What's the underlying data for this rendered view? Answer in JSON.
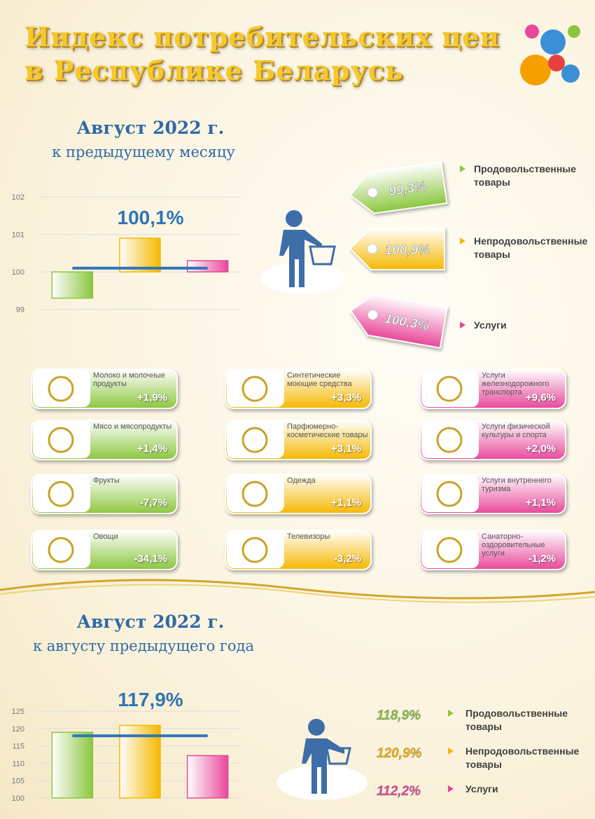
{
  "header": {
    "title_lines": [
      "Индекс потребительских цен",
      "в Республике Беларусь"
    ]
  },
  "chart_data": [
    {
      "type": "bar",
      "title": "Август 2022 г.",
      "subtitle": "к предыдущему месяцу",
      "categories": [
        "Продовольственные товары",
        "Непродовольственные товары",
        "Услуги"
      ],
      "values": [
        99.3,
        100.9,
        100.3
      ],
      "value_labels": [
        "99,3%",
        "100,9%",
        "100,3%"
      ],
      "colors": [
        "#8cc63f",
        "#f5b800",
        "#e8489a"
      ],
      "bar_base": 100,
      "total": 100.1,
      "total_label": "100,1%",
      "total_color": "#2e75b6",
      "ylim": [
        98.75,
        102.3
      ],
      "yticks": [
        99,
        100,
        101,
        102
      ],
      "grid": true
    },
    {
      "type": "bar",
      "title": "Август 2022 г.",
      "subtitle": "к августу предыдущего года",
      "categories": [
        "Продовольственные товары",
        "Непродовольственные товары",
        "Услуги"
      ],
      "values": [
        118.9,
        120.9,
        112.2
      ],
      "value_labels": [
        "118,9%",
        "120,9%",
        "112,2%"
      ],
      "colors": [
        "#8cc63f",
        "#f5b800",
        "#e8489a"
      ],
      "bar_base": 100,
      "total": 117.9,
      "total_label": "117,9%",
      "total_color": "#2e75b6",
      "ylim": [
        100,
        125
      ],
      "yticks": [
        100,
        105,
        110,
        115,
        120,
        125
      ],
      "grid": true
    }
  ],
  "cards": [
    {
      "color": "#8cc63f",
      "items": [
        {
          "label": "Молоко и молочные продукты",
          "value": "+1,9%"
        },
        {
          "label": "Мясо и мясопродукты",
          "value": "+1,4%"
        },
        {
          "label": "Фрукты",
          "value": "-7,7%"
        },
        {
          "label": "Овощи",
          "value": "-34,1%"
        }
      ]
    },
    {
      "color": "#f5b800",
      "items": [
        {
          "label": "Синтетические моющие средства",
          "value": "+3,3%"
        },
        {
          "label": "Парфюмерно-косметические товары",
          "value": "+3,1%"
        },
        {
          "label": "Одежда",
          "value": "+1,1%"
        },
        {
          "label": "Телевизоры",
          "value": "-3,2%"
        }
      ]
    },
    {
      "color": "#e8489a",
      "items": [
        {
          "label": "Услуги железнодорожного транспорта",
          "value": "+9,6%"
        },
        {
          "label": "Услуги физической культуры и спорта",
          "value": "+2,0%"
        },
        {
          "label": "Услуги внутреннего туризма",
          "value": "+1,1%"
        },
        {
          "label": "Санаторно-оздоровительные услуги",
          "value": "-1,2%"
        }
      ]
    }
  ]
}
